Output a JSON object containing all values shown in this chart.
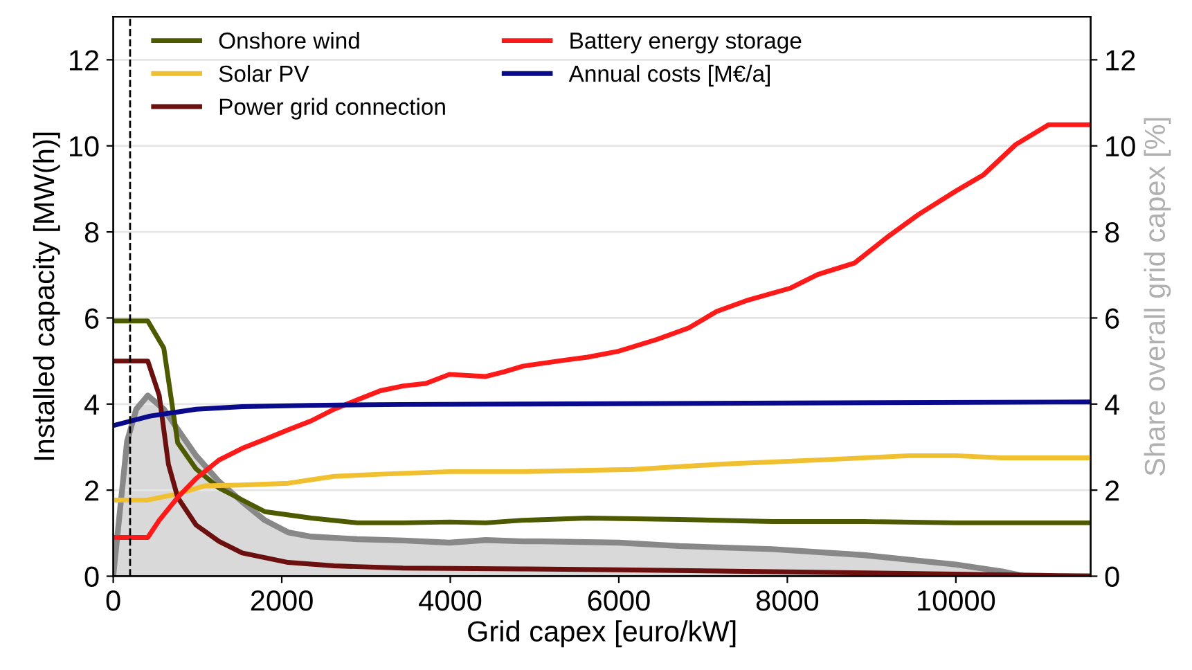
{
  "chart_data": {
    "type": "line",
    "xlabel": "Grid capex [euro/kW]",
    "ylabel": "Installed capacity [MW(h)]",
    "y2label": "Share overall grid capex [%]",
    "xlim": [
      0,
      11600
    ],
    "xticks": [
      0,
      2000,
      4000,
      6000,
      8000,
      10000
    ],
    "ylim": [
      0,
      13
    ],
    "yticks": [
      0,
      2,
      4,
      6,
      8,
      10,
      12
    ],
    "y2lim": [
      0,
      13
    ],
    "y2ticks": [
      0,
      2,
      4,
      6,
      8,
      10,
      12
    ],
    "grid": "y",
    "legend": "top left",
    "line_style": "solid",
    "marker": "none",
    "ref_lines": [
      {
        "axis": "x",
        "value": 200,
        "label": null,
        "color": "#000000",
        "line_style": "dashed"
      }
    ],
    "series": [
      {
        "type": "area",
        "axis": "y2",
        "color": "#888888",
        "x": [
          0,
          164,
          273,
          410,
          600,
          983,
          1255,
          1530,
          1800,
          2075,
          2350,
          2900,
          3440,
          3990,
          4420,
          4860,
          5080,
          6000,
          6720,
          7820,
          8910,
          10000,
          10550,
          10820,
          11580
        ],
        "values": [
          0,
          3.13,
          3.88,
          4.2,
          3.88,
          2.8,
          2.2,
          1.73,
          1.3,
          1.02,
          0.92,
          0.86,
          0.83,
          0.78,
          0.84,
          0.81,
          0.81,
          0.78,
          0.7,
          0.63,
          0.49,
          0.27,
          0.11,
          0,
          0
        ]
      },
      {
        "name": "Onshore wind",
        "color": "#4d5a00",
        "x": [
          0,
          410,
          600,
          765,
          980,
          1255,
          1800,
          2350,
          2900,
          3440,
          3990,
          4420,
          4860,
          5630,
          6720,
          7820,
          8910,
          10000,
          11580
        ],
        "values": [
          5.93,
          5.93,
          5.3,
          3.1,
          2.5,
          2.05,
          1.5,
          1.35,
          1.24,
          1.24,
          1.26,
          1.24,
          1.3,
          1.35,
          1.32,
          1.27,
          1.27,
          1.24,
          1.24
        ]
      },
      {
        "name": "Solar PV",
        "color": "#f0c030",
        "x": [
          0,
          410,
          710,
          1090,
          1530,
          2075,
          2620,
          3170,
          3990,
          4860,
          6175,
          7270,
          8360,
          9450,
          10000,
          10550,
          11580
        ],
        "values": [
          1.77,
          1.77,
          1.89,
          2.1,
          2.12,
          2.16,
          2.32,
          2.37,
          2.43,
          2.43,
          2.48,
          2.61,
          2.7,
          2.8,
          2.8,
          2.75,
          2.75
        ]
      },
      {
        "name": "Power grid connection",
        "color": "#6b0f0f",
        "x": [
          0,
          410,
          546,
          655,
          765,
          983,
          1255,
          1530,
          2075,
          2620,
          3440,
          4860,
          6000,
          8000,
          10000,
          11000,
          11580
        ],
        "values": [
          5.0,
          5.0,
          4.2,
          2.6,
          1.83,
          1.19,
          0.81,
          0.54,
          0.32,
          0.24,
          0.19,
          0.17,
          0.15,
          0.1,
          0.05,
          0.02,
          0
        ]
      },
      {
        "name": "Battery energy storage",
        "color": "#ff1a1a",
        "x": [
          0,
          410,
          546,
          765,
          983,
          1255,
          1530,
          1800,
          2075,
          2350,
          2620,
          2900,
          3170,
          3440,
          3710,
          3990,
          4420,
          4640,
          4860,
          5355,
          5630,
          6000,
          6450,
          6830,
          7160,
          7540,
          8030,
          8360,
          8800,
          9180,
          9560,
          10000,
          10330,
          10710,
          11100,
          11580
        ],
        "values": [
          0.9,
          0.9,
          1.3,
          1.83,
          2.27,
          2.7,
          2.97,
          3.18,
          3.4,
          3.61,
          3.88,
          4.1,
          4.31,
          4.42,
          4.48,
          4.69,
          4.64,
          4.75,
          4.88,
          5.02,
          5.09,
          5.23,
          5.5,
          5.77,
          6.15,
          6.42,
          6.69,
          7.01,
          7.28,
          7.87,
          8.41,
          8.95,
          9.33,
          10.03,
          10.49,
          10.49
        ]
      },
      {
        "name": "Annual costs [M€/a]",
        "color": "#0a0a8c",
        "x": [
          0,
          437,
          983,
          1530,
          2350,
          3440,
          4860,
          11580
        ],
        "values": [
          3.5,
          3.72,
          3.88,
          3.94,
          3.97,
          3.99,
          4.0,
          4.05
        ]
      }
    ]
  }
}
